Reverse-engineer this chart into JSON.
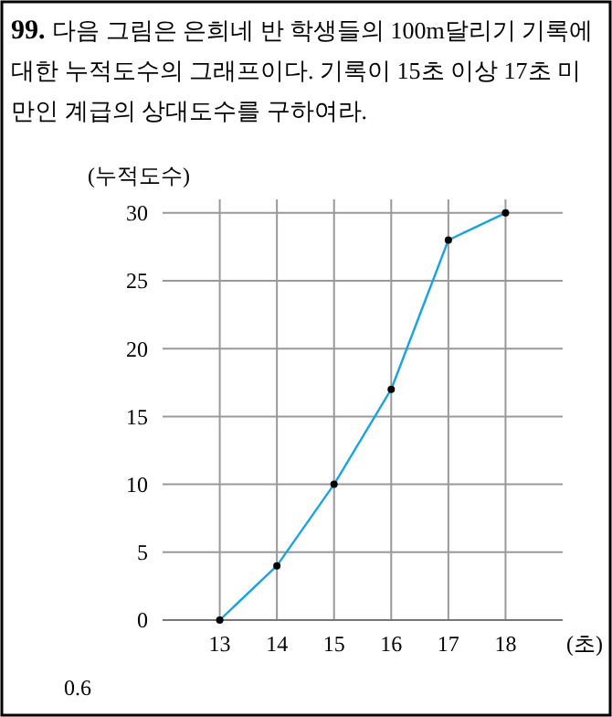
{
  "chart_data": {
    "type": "line",
    "title": "99. 다음 그림은 은희네 반 학생들의 100m달리기 기록에 대한 누적도수의 그래프이다. 기록이 15초 이상 17초 미만인 계급의 상대도수를 구하여라.",
    "ylabel": "(누적도수)",
    "xlabel": "(초)",
    "x": [
      13,
      14,
      15,
      16,
      17,
      18
    ],
    "series": [
      {
        "color": "#1aa3e0",
        "values": [
          0,
          4,
          10,
          17,
          28,
          30
        ]
      }
    ],
    "xlim": [
      12,
      19
    ],
    "xticks": [
      13,
      14,
      15,
      16,
      17,
      18
    ],
    "ylim": [
      0,
      31
    ],
    "yticks": [
      0,
      5,
      10,
      15,
      20,
      25,
      30
    ],
    "grid": true,
    "marker": "circle",
    "line_style": "solid",
    "annotations": [
      "0.6"
    ]
  }
}
